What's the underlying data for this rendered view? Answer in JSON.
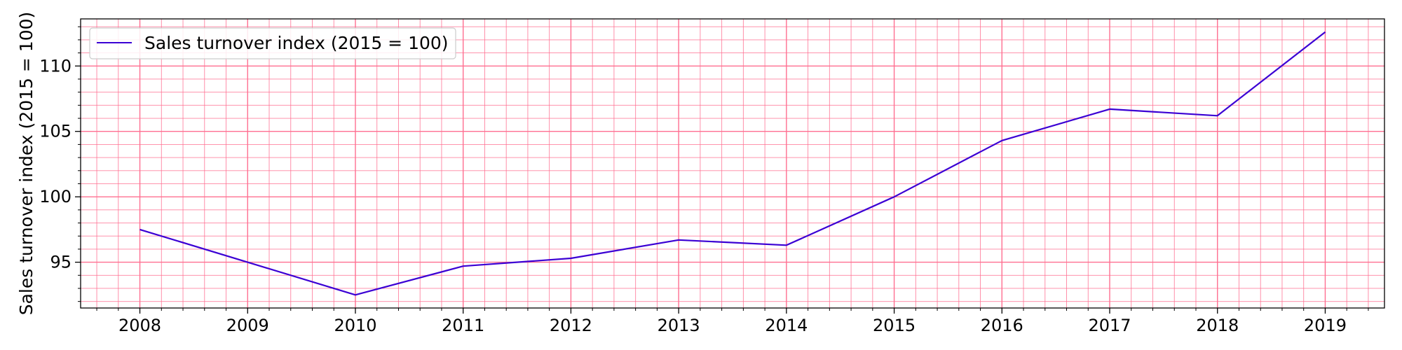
{
  "chart_data": {
    "type": "line",
    "title": "",
    "xlabel": "",
    "ylabel": "Sales turnover index (2015 = 100)",
    "x": [
      "2008",
      "2009",
      "2010",
      "2011",
      "2012",
      "2013",
      "2014",
      "2015",
      "2016",
      "2017",
      "2018",
      "2019"
    ],
    "series": [
      {
        "name": "Sales turnover index (2015 = 100)",
        "values": [
          97.5,
          null,
          92.5,
          94.7,
          95.3,
          96.7,
          96.3,
          100.0,
          104.3,
          106.7,
          106.2,
          112.6
        ],
        "color": "#3b00d4"
      }
    ],
    "xlim": [
      2007.45,
      2019.55
    ],
    "ylim": [
      91.5,
      113.6
    ],
    "yticks": [
      95,
      100,
      105,
      110
    ],
    "xticks": [
      "2008",
      "2009",
      "2010",
      "2011",
      "2012",
      "2013",
      "2014",
      "2015",
      "2016",
      "2017",
      "2018",
      "2019"
    ],
    "grid": true,
    "grid_color": "#ff6f91",
    "legend_position": "top-left"
  }
}
